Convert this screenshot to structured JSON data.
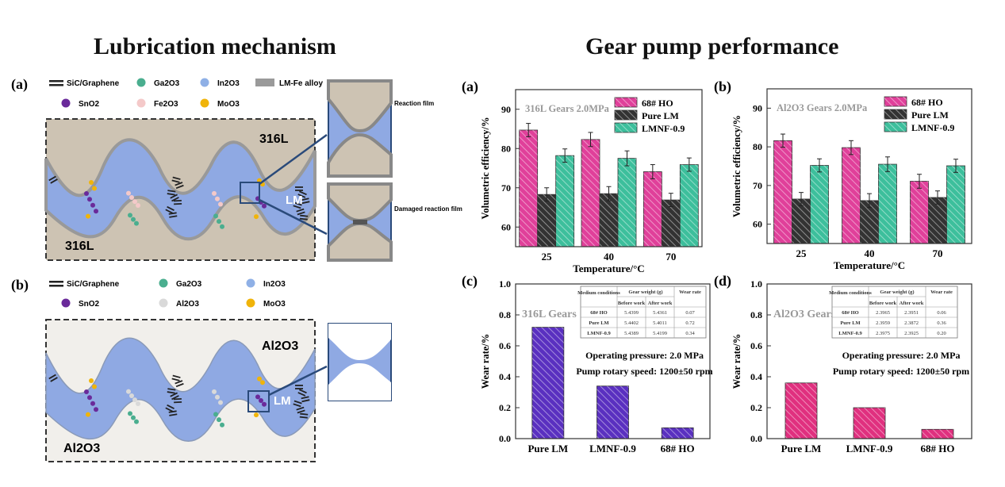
{
  "left": {
    "title": "Lubrication mechanism",
    "panel_a": {
      "label": "(a)",
      "legend": [
        "SiC/Graphene",
        "Ga2O3",
        "In2O3",
        "LM-Fe alloy",
        "SnO2",
        "Fe2O3",
        "MoO3"
      ],
      "colors": {
        "Ga2O3": "#4aae8f",
        "In2O3": "#8fb0e6",
        "LM-Fe alloy": "#9a9a9a",
        "SnO2": "#6a2a9a",
        "Fe2O3": "#f4c9c9",
        "MoO3": "#f0b40a",
        "substrate": "#cdc3b3",
        "lm": "#8fa9e3"
      },
      "top_material": "316L",
      "bottom_material": "316L",
      "lm_label": "LM",
      "inset_top_label": "Reaction film",
      "inset_bottom_label": "Damaged reaction film"
    },
    "panel_b": {
      "label": "(b)",
      "legend": [
        "SiC/Graphene",
        "Ga2O3",
        "In2O3",
        "SnO2",
        "Al2O3",
        "MoO3"
      ],
      "colors": {
        "Al2O3": "#d9d9d9",
        "substrate": "#f1efeb"
      },
      "top_material": "Al2O3",
      "bottom_material": "Al2O3",
      "lm_label": "LM"
    }
  },
  "right": {
    "title": "Gear pump performance"
  },
  "chart_data": [
    {
      "panel": "(a)",
      "type": "bar",
      "annotation": "316L Gears  2.0MPa",
      "categories": [
        "25",
        "40",
        "70"
      ],
      "xlabel": "Temperature/°C",
      "ylabel": "Volumetric efficiency/%",
      "ylim": [
        55,
        95
      ],
      "yticks": [
        60,
        70,
        80,
        90
      ],
      "legend_position": "top-right",
      "series": [
        {
          "name": "68# HO",
          "values": [
            84.7,
            82.3,
            74.1
          ],
          "errors": [
            1.7,
            1.8,
            1.8
          ],
          "color": "#e0409a"
        },
        {
          "name": "Pure LM",
          "values": [
            68.3,
            68.5,
            66.9
          ],
          "errors": [
            1.7,
            1.8,
            1.7
          ],
          "color": "#333333"
        },
        {
          "name": "LMNF-0.9",
          "values": [
            78.2,
            77.5,
            75.9
          ],
          "errors": [
            1.7,
            1.9,
            1.7
          ],
          "color": "#3dbf9c"
        }
      ]
    },
    {
      "panel": "(b)",
      "type": "bar",
      "annotation": "Al2O3 Gears  2.0MPa",
      "categories": [
        "25",
        "40",
        "70"
      ],
      "xlabel": "Temperature/°C",
      "ylabel": "Volumetric efficiency/%",
      "ylim": [
        55,
        95
      ],
      "yticks": [
        60,
        70,
        80,
        90
      ],
      "legend_position": "top-right",
      "series": [
        {
          "name": "68# HO",
          "values": [
            81.6,
            79.8,
            71.1
          ],
          "errors": [
            1.7,
            1.8,
            1.8
          ],
          "color": "#e0409a"
        },
        {
          "name": "Pure LM",
          "values": [
            66.5,
            66.1,
            66.9
          ],
          "errors": [
            1.7,
            1.8,
            1.7
          ],
          "color": "#333333"
        },
        {
          "name": "LMNF-0.9",
          "values": [
            75.2,
            75.5,
            75.1
          ],
          "errors": [
            1.7,
            1.9,
            1.7
          ],
          "color": "#3dbf9c"
        }
      ]
    },
    {
      "panel": "(c)",
      "type": "bar",
      "annotation": "316L Gears",
      "categories": [
        "Pure LM",
        "LMNF-0.9",
        "68# HO"
      ],
      "ylabel": "Wear rate/%",
      "xlabel": "",
      "ylim": [
        0,
        1.0
      ],
      "yticks": [
        "0.0",
        "0.2",
        "0.4",
        "0.6",
        "0.8",
        "1.0"
      ],
      "values": [
        0.72,
        0.34,
        0.07
      ],
      "color": "#5a30c0",
      "notes": [
        "Operating pressure: 2.0 MPa",
        "Pump rotary speed: 1200±50 rpm"
      ],
      "table": {
        "headers": [
          "Medium conditions",
          "Gear weight (g)",
          "Wear rate"
        ],
        "subheaders": [
          "Before work",
          "After work"
        ],
        "rows": [
          [
            "68# HO",
            "5.4399",
            "5.4361",
            "0.07"
          ],
          [
            "Pure LM",
            "5.4402",
            "5.4011",
            "0.72"
          ],
          [
            "LMNF-0.9",
            "5.4389",
            "5.4199",
            "0.34"
          ]
        ]
      }
    },
    {
      "panel": "(d)",
      "type": "bar",
      "annotation": "Al2O3 Gears",
      "categories": [
        "Pure LM",
        "LMNF-0.9",
        "68# HO"
      ],
      "ylabel": "Wear rate/%",
      "xlabel": "",
      "ylim": [
        0,
        1.0
      ],
      "yticks": [
        "0.0",
        "0.2",
        "0.4",
        "0.6",
        "0.8",
        "1.0"
      ],
      "values": [
        0.36,
        0.2,
        0.06
      ],
      "color": "#e0307f",
      "notes": [
        "Operating pressure: 2.0 MPa",
        "Pump rotary speed: 1200±50 rpm"
      ],
      "table": {
        "headers": [
          "Medium conditions",
          "Gear weight (g)",
          "Wear rate"
        ],
        "subheaders": [
          "Before work",
          "After work"
        ],
        "rows": [
          [
            "68# HO",
            "2.3965",
            "2.3951",
            "0.06"
          ],
          [
            "Pure LM",
            "2.3959",
            "2.3872",
            "0.36"
          ],
          [
            "LMNF-0.9",
            "2.3975",
            "2.3925",
            "0.20"
          ]
        ]
      }
    }
  ]
}
